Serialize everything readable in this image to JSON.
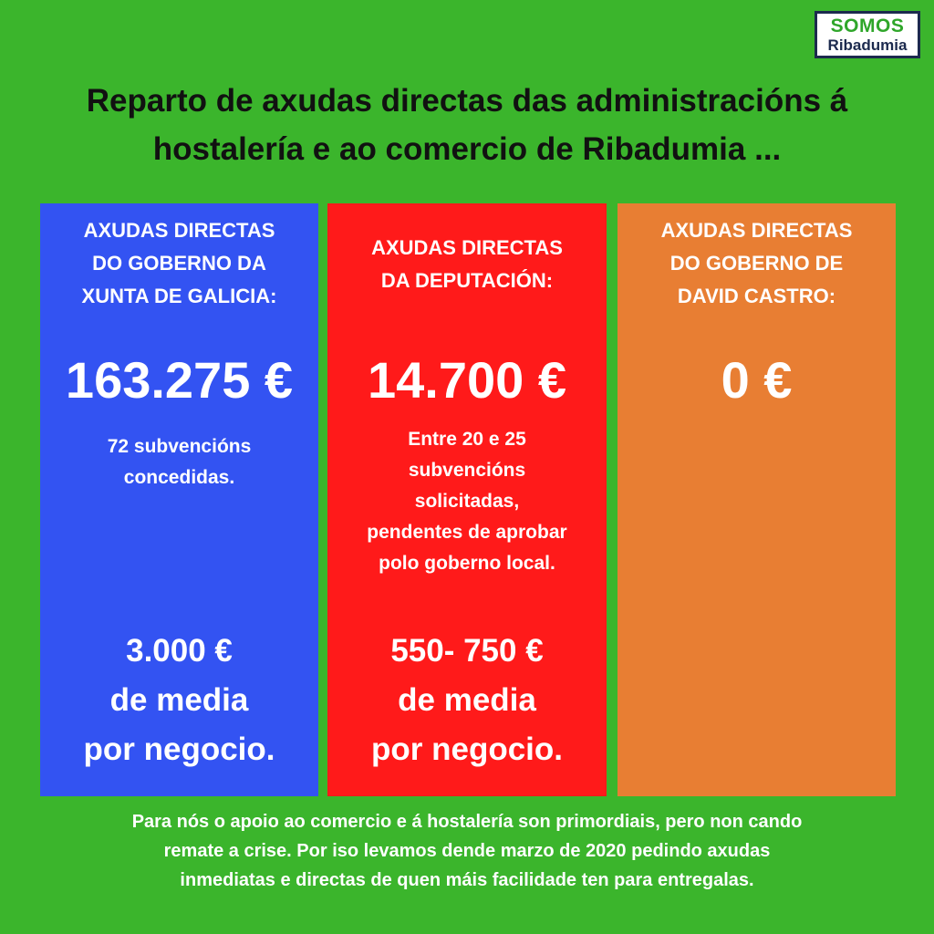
{
  "logo": {
    "line1": "SOMOS",
    "line2": "Ribadumia"
  },
  "title": {
    "line1": "Reparto de axudas directas das administracións á",
    "line2": "hostalería e ao comercio de Ribadumia ..."
  },
  "columns": [
    {
      "color": "#3353f2",
      "heading": [
        "AXUDAS DIRECTAS",
        "DO GOBERNO DA",
        "XUNTA DE GALICIA:"
      ],
      "amount": "163.275 €",
      "description": [
        "72 subvencións",
        "concedidas."
      ],
      "average": [
        "3.000 €",
        "de media",
        "por negocio."
      ]
    },
    {
      "color": "#ff1a1a",
      "heading": [
        "AXUDAS DIRECTAS",
        "DA DEPUTACIÓN:"
      ],
      "amount": "14.700 €",
      "description": [
        "Entre 20 e 25",
        "subvencións",
        "solicitadas,",
        "pendentes de aprobar",
        "polo goberno local."
      ],
      "average": [
        "550- 750 €",
        "de media",
        "por negocio."
      ]
    },
    {
      "color": "#e87e33",
      "heading": [
        "AXUDAS DIRECTAS",
        "DO GOBERNO DE",
        "DAVID CASTRO:"
      ],
      "amount": "0 €"
    }
  ],
  "footer": [
    "Para nós o apoio ao comercio e á hostalería son primordiais, pero non cando",
    "remate a crise. Por iso levamos dende marzo de 2020 pedindo axudas",
    "inmediatas e directas de quen máis facilidade ten para entregalas."
  ],
  "colors": {
    "background": "#3bb52c",
    "title_text": "#111111",
    "logo_green": "#2fa62a",
    "logo_navy": "#1c2a4e"
  }
}
